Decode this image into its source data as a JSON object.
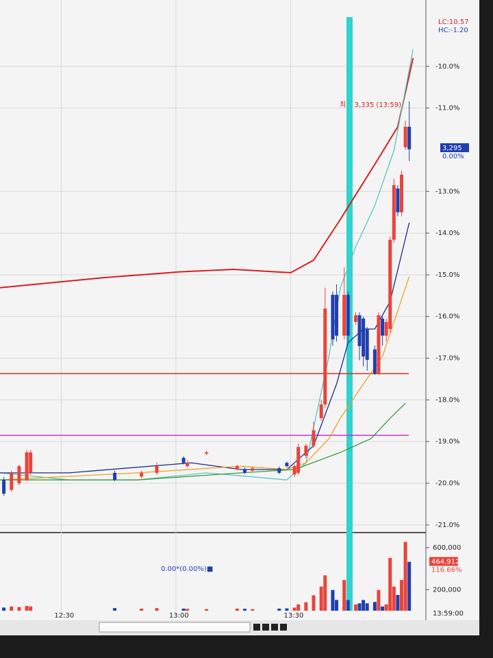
{
  "chart_data": {
    "type": "candlestick",
    "xlim": [
      "12:14",
      "14:05"
    ],
    "xticks": [
      "12:30",
      "13:00",
      "13:30"
    ],
    "ylim": [
      -21.15,
      -8.82
    ],
    "yticks": [
      {
        "value": -10,
        "label": "-10.0%"
      },
      {
        "value": -11,
        "label": "-11.0%"
      },
      {
        "value": -13,
        "label": "-13.0%"
      },
      {
        "value": -14,
        "label": "-14.0%"
      },
      {
        "value": -15,
        "label": "-15.0%"
      },
      {
        "value": -16,
        "label": "-16.0%"
      },
      {
        "value": -17,
        "label": "-17.0%"
      },
      {
        "value": -18,
        "label": "-18.0%"
      },
      {
        "value": -19,
        "label": "-19.0%"
      },
      {
        "value": -20,
        "label": "-20.0%"
      },
      {
        "value": -21,
        "label": "-21.0%"
      }
    ],
    "grid": true,
    "up_color": "#e8443a",
    "down_color": "#1f3fb0",
    "x": [
      "12:15",
      "12:17",
      "12:19",
      "12:21",
      "12:22",
      "12:44",
      "12:51",
      "12:55",
      "13:02",
      "13:03",
      "13:08",
      "13:16",
      "13:18",
      "13:20",
      "13:27",
      "13:29",
      "13:31",
      "13:32",
      "13:34",
      "13:36",
      "13:38",
      "13:39",
      "13:41",
      "13:42",
      "13:44",
      "13:45",
      "13:47",
      "13:48",
      "13:49",
      "13:50",
      "13:52",
      "13:53",
      "13:54",
      "13:55",
      "13:56",
      "13:57",
      "13:58",
      "13:59",
      "14:00",
      "14:01"
    ],
    "open": [
      -19.92,
      -20.16,
      -20.0,
      -19.92,
      -19.75,
      -19.75,
      -19.84,
      -19.75,
      -19.39,
      -19.59,
      -19.29,
      -19.67,
      -19.67,
      -19.7,
      -19.64,
      -19.51,
      -19.79,
      -19.75,
      -19.34,
      -19.1,
      -18.44,
      -18.11,
      -15.48,
      -15.48,
      -16.46,
      -15.48,
      -16.13,
      -15.97,
      -16.05,
      -16.3,
      -16.79,
      -17.37,
      -16.05,
      -16.46,
      -16.3,
      -14.16,
      -12.93,
      -13.5,
      -11.94,
      -11.45
    ],
    "high": [
      -19.85,
      -19.7,
      -19.55,
      -19.2,
      -19.2,
      -19.7,
      -19.7,
      -19.5,
      -19.35,
      -19.45,
      -19.22,
      -19.55,
      -19.62,
      -19.6,
      -19.6,
      -19.48,
      -19.55,
      -19.05,
      -19.05,
      -18.52,
      -18.0,
      -15.31,
      -15.4,
      -15.23,
      -14.82,
      -15.4,
      -15.9,
      -15.9,
      -16.0,
      -16.25,
      -16.7,
      -15.9,
      -16.0,
      -16.05,
      -14.08,
      -12.7,
      -12.85,
      -12.5,
      -11.3,
      -10.84
    ],
    "low": [
      -20.3,
      -20.2,
      -20.05,
      -19.95,
      -19.8,
      -19.95,
      -19.88,
      -19.8,
      -19.55,
      -19.62,
      -19.32,
      -19.7,
      -19.78,
      -19.72,
      -19.78,
      -19.62,
      -19.85,
      -19.8,
      -19.4,
      -19.15,
      -18.5,
      -18.2,
      -16.7,
      -16.6,
      -16.55,
      -16.6,
      -16.2,
      -17.05,
      -17.2,
      -17.3,
      -17.4,
      -17.4,
      -16.7,
      -16.6,
      -16.4,
      -14.24,
      -13.6,
      -13.6,
      -12.0,
      -12.27
    ],
    "close": [
      -20.25,
      -19.75,
      -19.59,
      -19.26,
      -19.26,
      -19.92,
      -19.75,
      -19.59,
      -19.51,
      -19.51,
      -19.26,
      -19.59,
      -19.75,
      -19.64,
      -19.75,
      -19.59,
      -19.59,
      -19.13,
      -19.1,
      -18.73,
      -18.11,
      -15.81,
      -16.55,
      -16.46,
      -15.48,
      -16.46,
      -15.97,
      -16.71,
      -16.96,
      -17.04,
      -17.37,
      -15.97,
      -16.46,
      -16.13,
      -14.16,
      -12.85,
      -13.5,
      -12.6,
      -11.45,
      -11.99
    ],
    "volume": [
      30000,
      40000,
      35000,
      45000,
      40000,
      25000,
      20000,
      25000,
      20000,
      18000,
      15000,
      20000,
      18000,
      15000,
      20000,
      22000,
      30000,
      60000,
      80000,
      146000,
      229000,
      336000,
      197000,
      102000,
      292000,
      102000,
      60000,
      70000,
      102000,
      70000,
      83000,
      197000,
      40000,
      60000,
      502000,
      229000,
      150000,
      292000,
      654000,
      464912
    ],
    "volume_ylim": [
      0,
      736000
    ],
    "volume_ticks": [
      {
        "value": 600000,
        "label": "600,000"
      },
      {
        "value": 200000,
        "label": "200,000"
      }
    ],
    "volume_current": {
      "value": 464912,
      "label": "464,912"
    },
    "volume_ratio": "116.66%",
    "volume_note": "0.00*(0.00%)■",
    "lines": [
      {
        "color": "#d42020",
        "x": [
          "12:14",
          "12:41",
          "13:01",
          "13:15",
          "13:30",
          "13:36",
          "13:43",
          "13:52",
          "13:58",
          "14:02"
        ],
        "values": [
          -15.31,
          -15.07,
          -14.93,
          -14.87,
          -14.95,
          -14.65,
          -13.67,
          -12.35,
          -11.45,
          -9.8
        ]
      },
      {
        "color": "#5cc4c0",
        "x": [
          "12:14",
          "12:32",
          "12:50",
          "13:08",
          "13:29",
          "13:34",
          "13:40",
          "13:43",
          "13:47",
          "13:52",
          "13:57",
          "14:02"
        ],
        "values": [
          -19.75,
          -19.92,
          -19.92,
          -19.75,
          -19.92,
          -19.51,
          -16.96,
          -15.31,
          -14.33,
          -13.34,
          -12.02,
          -9.59
        ]
      },
      {
        "color": "#1a2a8a",
        "x": [
          "12:14",
          "12:32",
          "13:04",
          "13:17",
          "13:29",
          "13:36",
          "13:42",
          "13:45",
          "13:49",
          "13:52",
          "13:56",
          "14:01"
        ],
        "values": [
          -19.75,
          -19.75,
          -19.51,
          -19.67,
          -19.67,
          -19.1,
          -17.62,
          -16.63,
          -16.3,
          -16.3,
          -15.64,
          -13.75
        ]
      },
      {
        "color": "#f0a020",
        "x": [
          "12:14",
          "12:50",
          "13:17",
          "13:29",
          "13:34",
          "13:40",
          "13:43",
          "13:49",
          "13:54",
          "14:01"
        ],
        "values": [
          -19.92,
          -19.75,
          -19.59,
          -19.67,
          -19.51,
          -18.93,
          -18.44,
          -17.62,
          -16.96,
          -15.04
        ]
      },
      {
        "color": "#3a9a40",
        "x": [
          "12:14",
          "12:50",
          "13:17",
          "13:31",
          "13:43",
          "13:51",
          "13:56",
          "14:00"
        ],
        "values": [
          -19.92,
          -19.92,
          -19.75,
          -19.67,
          -19.26,
          -18.93,
          -18.44,
          -18.08
        ]
      }
    ],
    "hlines": [
      {
        "value": -17.37,
        "color": "#e03020"
      },
      {
        "value": -18.85,
        "color": "#d030d0"
      }
    ],
    "lc_label": "LC:10.57",
    "hc_label": "HC:-1.20",
    "price_label": "3,295",
    "price_change": "0.00%",
    "high_annotation": "최고 3,335 (13:59)",
    "time_label": "13:59:00"
  }
}
